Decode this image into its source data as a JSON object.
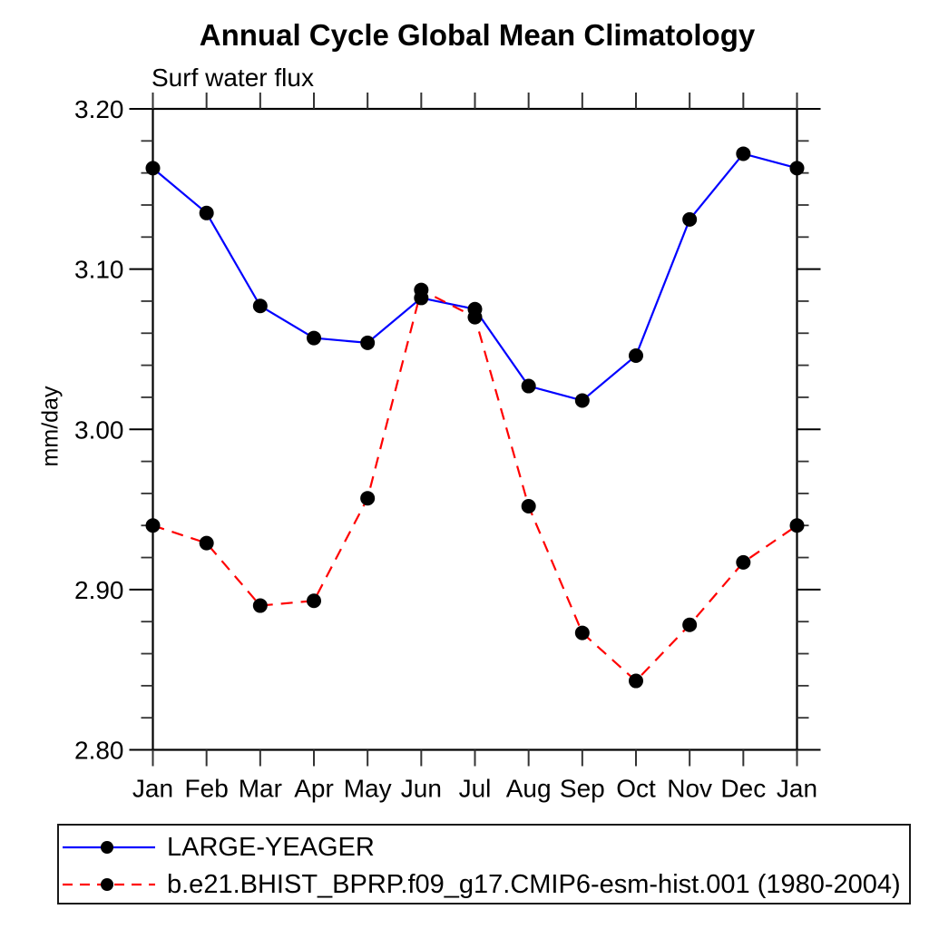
{
  "page": {
    "background": "#ffffff"
  },
  "chart_data": {
    "type": "line",
    "title": "Annual Cycle Global Mean Climatology",
    "subtitle": "Surf water flux",
    "xlabel": "",
    "ylabel": "mm/day",
    "categories": [
      "Jan",
      "Feb",
      "Mar",
      "Apr",
      "May",
      "Jun",
      "Jul",
      "Aug",
      "Sep",
      "Oct",
      "Nov",
      "Dec",
      "Jan"
    ],
    "ylim": [
      2.8,
      3.2
    ],
    "y_major_ticks": [
      3.2,
      3.1,
      3.0,
      2.9,
      2.8
    ],
    "y_tick_labels": [
      "3.20",
      "3.10",
      "3.00",
      "2.90",
      "2.80"
    ],
    "y_minor_step": 0.02,
    "grid": false,
    "legend_position": "bottom-left-box",
    "marker": "filled-circle",
    "marker_color": "#000000",
    "axis_color": "#000000",
    "series": [
      {
        "name": "LARGE-YEAGER",
        "color": "#0000ff",
        "style": "solid",
        "values": [
          3.163,
          3.135,
          3.077,
          3.057,
          3.054,
          3.082,
          3.075,
          3.027,
          3.018,
          3.046,
          3.131,
          3.172,
          3.163
        ]
      },
      {
        "name": "b.e21.BHIST_BPRP.f09_g17.CMIP6-esm-hist.001 (1980-2004)",
        "color": "#ff0000",
        "style": "dashed",
        "values": [
          2.94,
          2.929,
          2.89,
          2.893,
          2.957,
          3.087,
          3.07,
          2.952,
          2.873,
          2.843,
          2.878,
          2.917,
          2.94
        ]
      }
    ]
  }
}
